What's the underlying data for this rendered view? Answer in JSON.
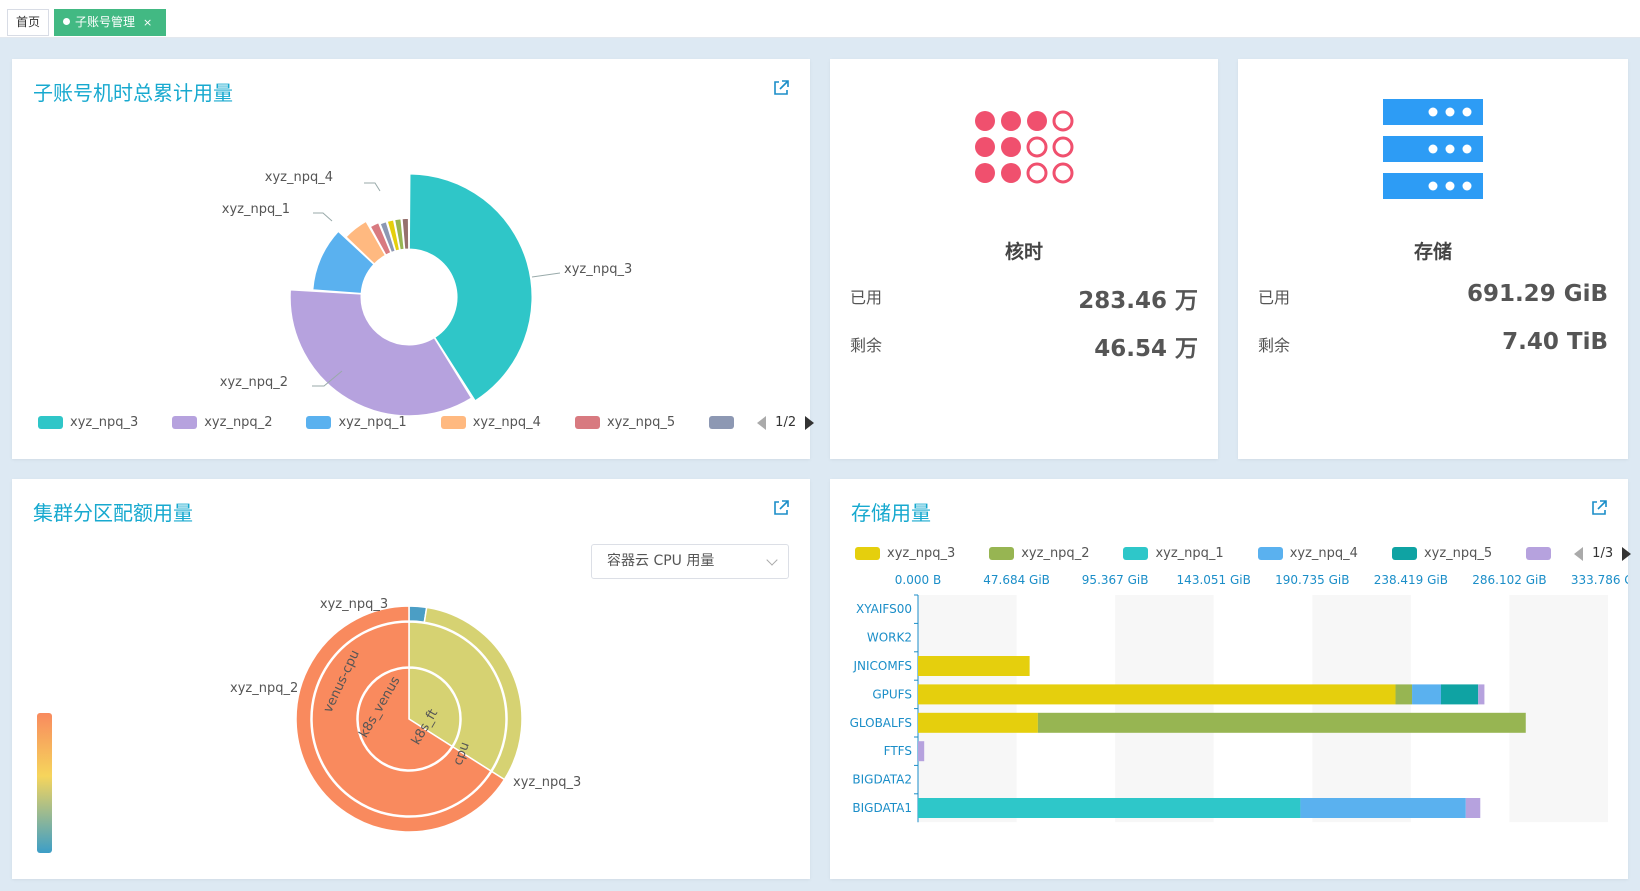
{
  "tabs": {
    "home": "首页",
    "active": "子账号管理",
    "close": "×"
  },
  "pie_card": {
    "title": "子账号机时总累计用量",
    "legend": [
      {
        "name": "xyz_npq_3",
        "color": "#2fc6c8"
      },
      {
        "name": "xyz_npq_2",
        "color": "#b6a2de"
      },
      {
        "name": "xyz_npq_1",
        "color": "#5ab1ef"
      },
      {
        "name": "xyz_npq_4",
        "color": "#ffb980"
      },
      {
        "name": "xyz_npq_5",
        "color": "#d87a80"
      },
      {
        "name": "",
        "color": "#8d98b3"
      }
    ],
    "page": "1/2",
    "callouts": [
      "xyz_npq_4",
      "xyz_npq_1",
      "xyz_npq_3",
      "xyz_npq_2"
    ]
  },
  "corehour_card": {
    "title": "核时",
    "used_label": "已用",
    "used_value": "283.46 万",
    "remain_label": "剩余",
    "remain_value": "46.54 万",
    "icon": "dots-grid-icon",
    "accent": "#f0506e"
  },
  "storage_card": {
    "title": "存储",
    "used_label": "已用",
    "used_value": "691.29 GiB",
    "remain_label": "剩余",
    "remain_value": "7.40 TiB",
    "icon": "server-icon",
    "accent": "#2d9cf5"
  },
  "quota_card": {
    "title": "集群分区配额用量",
    "select_value": "容器云 CPU 用量",
    "sunburst_labels": {
      "inner": [
        "k8s_venus",
        "k8s_ft"
      ],
      "middle": [
        "venus-cpu",
        "cpu"
      ],
      "outer": [
        "xyz_npq_3",
        "xyz_npq_2",
        "xyz_npq_3"
      ]
    }
  },
  "storage_usage_card": {
    "title": "存储用量",
    "legend": [
      {
        "name": "xyz_npq_3",
        "color": "#e5cf0d"
      },
      {
        "name": "xyz_npq_2",
        "color": "#97b552"
      },
      {
        "name": "xyz_npq_1",
        "color": "#2ec7c9"
      },
      {
        "name": "xyz_npq_4",
        "color": "#5ab1ef"
      },
      {
        "name": "xyz_npq_5",
        "color": "#0fa3a3"
      },
      {
        "name": "",
        "color": "#b6a2de"
      }
    ],
    "page": "1/3"
  },
  "chart_data": [
    {
      "type": "pie",
      "title": "子账号机时总累计用量",
      "labels": [
        "xyz_npq_3",
        "xyz_npq_2",
        "xyz_npq_1",
        "xyz_npq_4",
        "xyz_npq_5",
        "",
        "",
        "",
        ""
      ],
      "values": [
        40.5,
        34.5,
        10.8,
        4.8,
        2.0,
        1.5,
        1.5,
        1.5,
        1.5
      ],
      "colors": [
        "#2fc6c8",
        "#b6a2de",
        "#5ab1ef",
        "#ffb980",
        "#d87a80",
        "#8d98b3",
        "#e5cf0d",
        "#97b552",
        "#95706d"
      ],
      "donut": true,
      "rose": true,
      "legend": "bottom",
      "legend_page": "1/2"
    },
    {
      "type": "sunburst",
      "title": "集群分区配额用量",
      "rings": [
        {
          "label": "k8s_venus",
          "value": 34,
          "color": "#d6d272"
        },
        {
          "label": "k8s_ft",
          "value": 66,
          "color": "#f98a5e"
        }
      ],
      "middle": [
        {
          "label": "venus-cpu",
          "value": 34,
          "color": "#d6d272"
        },
        {
          "label": "cpu",
          "value": 66,
          "color": "#f98a5e"
        }
      ],
      "outer": [
        {
          "label": "xyz_npq_3",
          "value": 2.5,
          "color": "#4b9ec5"
        },
        {
          "label": "xyz_npq_2",
          "value": 31.5,
          "color": "#d6d272"
        },
        {
          "label": "xyz_npq_3",
          "value": 66,
          "color": "#f98a5e"
        }
      ],
      "visual_map_colors": [
        "#f88a5e",
        "#f6d55c",
        "#3c9ec7"
      ]
    },
    {
      "type": "bar",
      "orientation": "horizontal",
      "stacked": true,
      "title": "存储用量",
      "categories": [
        "XYAIFS00",
        "WORK2",
        "JNICOMFS",
        "GPUFS",
        "GLOBALFS",
        "FTFS",
        "BIGDATA2",
        "BIGDATA1"
      ],
      "xticks": [
        "0.000 B",
        "47.684 GiB",
        "95.367 GiB",
        "143.051 GiB",
        "190.735 GiB",
        "238.419 GiB",
        "286.102 GiB",
        "333.786 GiB"
      ],
      "xlim": [
        0,
        333.786
      ],
      "xunit": "GiB",
      "legend_page": "1/3",
      "series": [
        {
          "name": "xyz_npq_3",
          "color": "#e5cf0d",
          "values": [
            0,
            0,
            54,
            231,
            58,
            0,
            0,
            0
          ]
        },
        {
          "name": "xyz_npq_2",
          "color": "#97b552",
          "values": [
            0,
            0,
            0,
            8,
            236,
            0,
            0,
            0
          ]
        },
        {
          "name": "xyz_npq_1",
          "color": "#2ec7c9",
          "values": [
            0,
            0,
            0,
            0,
            0,
            0,
            0,
            185
          ]
        },
        {
          "name": "xyz_npq_4",
          "color": "#5ab1ef",
          "values": [
            0,
            0,
            0,
            14,
            0,
            0,
            0,
            80
          ]
        },
        {
          "name": "xyz_npq_5",
          "color": "#0fa3a3",
          "values": [
            0,
            0,
            0,
            18,
            0,
            0,
            0,
            0
          ]
        },
        {
          "name": "",
          "color": "#b6a2de",
          "values": [
            0,
            0,
            0,
            3,
            0,
            3,
            0,
            7
          ]
        }
      ]
    }
  ]
}
